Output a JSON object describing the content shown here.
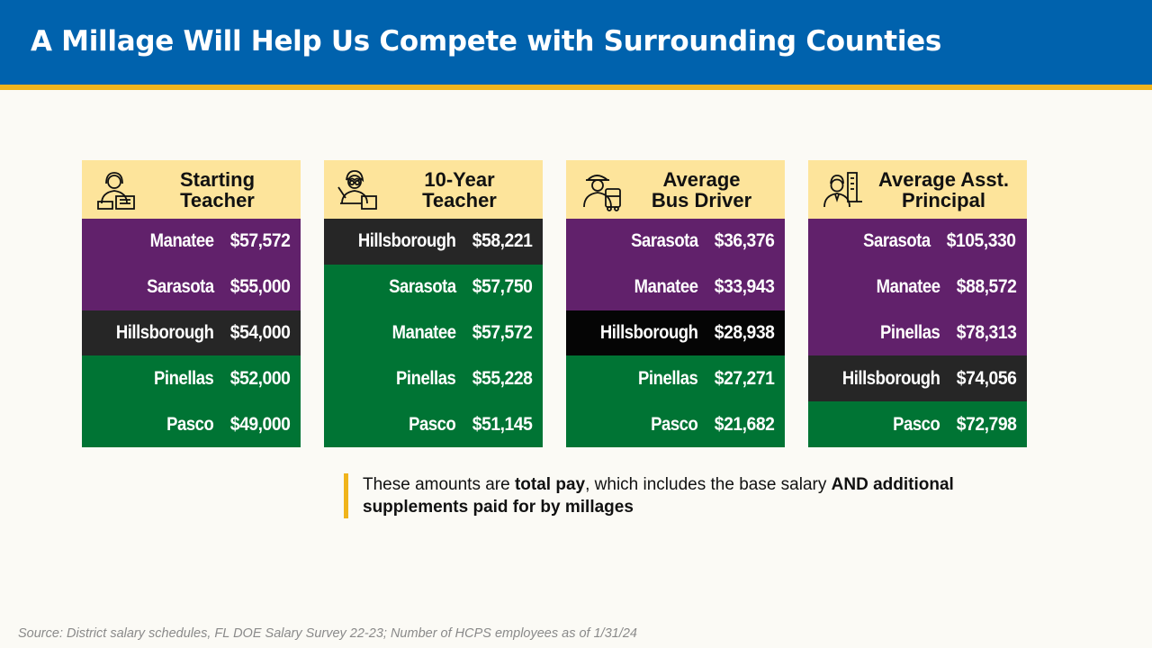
{
  "title": "A Millage Will Help Us Compete with Surrounding Counties",
  "cards": [
    {
      "title_line1": "Starting",
      "title_line2": "Teacher",
      "icon": "teacher-icon",
      "rows": [
        {
          "county": "Manatee",
          "amount": "$57,572",
          "color": "#61216b"
        },
        {
          "county": "Sarasota",
          "amount": "$55,000",
          "color": "#61216b"
        },
        {
          "county": "Hillsborough",
          "amount": "$54,000",
          "color": "#262626"
        },
        {
          "county": "Pinellas",
          "amount": "$52,000",
          "color": "#007434"
        },
        {
          "county": "Pasco",
          "amount": "$49,000",
          "color": "#007434"
        }
      ]
    },
    {
      "title_line1": "10-Year",
      "title_line2": "Teacher",
      "icon": "senior-teacher-icon",
      "rows": [
        {
          "county": "Hillsborough",
          "amount": "$58,221",
          "color": "#262626"
        },
        {
          "county": "Sarasota",
          "amount": "$57,750",
          "color": "#007434"
        },
        {
          "county": "Manatee",
          "amount": "$57,572",
          "color": "#007434"
        },
        {
          "county": "Pinellas",
          "amount": "$55,228",
          "color": "#007434"
        },
        {
          "county": "Pasco",
          "amount": "$51,145",
          "color": "#007434"
        }
      ]
    },
    {
      "title_line1": "Average",
      "title_line2": "Bus Driver",
      "icon": "bus-driver-icon",
      "rows": [
        {
          "county": "Sarasota",
          "amount": "$36,376",
          "color": "#61216b"
        },
        {
          "county": "Manatee",
          "amount": "$33,943",
          "color": "#61216b"
        },
        {
          "county": "Hillsborough",
          "amount": "$28,938",
          "color": "#050505"
        },
        {
          "county": "Pinellas",
          "amount": "$27,271",
          "color": "#007434"
        },
        {
          "county": "Pasco",
          "amount": "$21,682",
          "color": "#007434"
        }
      ]
    },
    {
      "title_line1": "Average Asst.",
      "title_line2": "Principal",
      "icon": "principal-icon",
      "rows": [
        {
          "county": "Sarasota",
          "amount": "$105,330",
          "color": "#61216b"
        },
        {
          "county": "Manatee",
          "amount": "$88,572",
          "color": "#61216b"
        },
        {
          "county": "Pinellas",
          "amount": "$78,313",
          "color": "#61216b"
        },
        {
          "county": "Hillsborough",
          "amount": "$74,056",
          "color": "#262626"
        },
        {
          "county": "Pasco",
          "amount": "$72,798",
          "color": "#007434"
        }
      ]
    }
  ],
  "note": {
    "part1": "These amounts are ",
    "bold1": "total pay",
    "part2": ", which includes the base salary ",
    "bold2": "AND additional supplements paid for by millages"
  },
  "source": "Source: District salary schedules, FL DOE Salary Survey 22-23; Number of HCPS employees as of 1/31/24",
  "colors": {
    "header": "#0062ad",
    "accent": "#f0b41c",
    "card_header": "#fde49b",
    "purple": "#61216b",
    "green": "#007434",
    "dark": "#262626"
  }
}
